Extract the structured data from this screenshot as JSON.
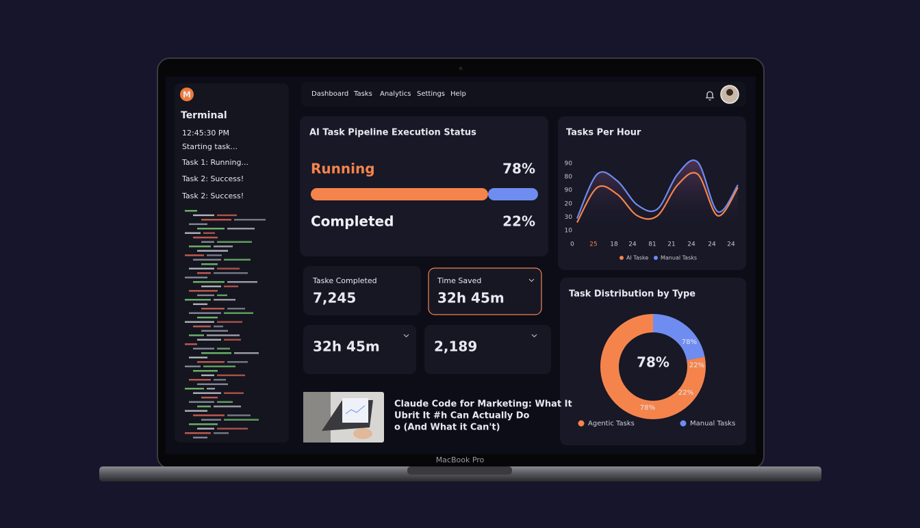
{
  "laptop_label": "MacBook Pro",
  "terminal": {
    "logo": "M",
    "title": "Terminal",
    "lines": [
      "12:45:30 PM",
      "Starting task...",
      "Task 1: Running...",
      "Task 2: Success!",
      "Task 2: Success!"
    ]
  },
  "nav": {
    "items": [
      "Dashboard",
      "Tasks",
      "Analytics",
      "Settings",
      "Help"
    ]
  },
  "pipeline": {
    "title": "AI Task Pipeline Execution Status",
    "rows": [
      {
        "label": "Running",
        "value": 78,
        "value_label": "78%",
        "color": "#f5844c"
      },
      {
        "label": "Completed",
        "value": 22,
        "value_label": "22%",
        "color": "#6f8cf0"
      }
    ]
  },
  "stats": [
    {
      "label": "Taske Completed",
      "value": "7,245"
    },
    {
      "label": "Time Saved",
      "value": "32h 45m"
    },
    {
      "value": "32h 45m"
    },
    {
      "value": "2,189"
    }
  ],
  "article": {
    "title_lines": [
      "Claude Code for Marketing: What It",
      "Ubrit It #h Can Actually Do",
      "o (And What it Can't)"
    ]
  },
  "chart_data": [
    {
      "type": "line",
      "title": "Tasks Per Hour",
      "y_labels": [
        "90",
        "80",
        "90",
        "20",
        "30",
        "10"
      ],
      "ylim": [
        0,
        5
      ],
      "categories": [
        "0",
        "25",
        "18",
        "24",
        "81",
        "21",
        "24",
        "24",
        "24"
      ],
      "series": [
        {
          "name": "Manual Tasks",
          "color": "#6f8cf0",
          "values": [
            0.9,
            4.2,
            3.7,
            1.9,
            1.6,
            4.2,
            5.1,
            1.4,
            3.4
          ]
        },
        {
          "name": "AI Taske",
          "color": "#f5844c",
          "values": [
            0.6,
            3.2,
            2.7,
            1.1,
            1.1,
            3.4,
            4.2,
            1.1,
            3.2
          ]
        }
      ]
    },
    {
      "type": "pie",
      "title": "Task Distribution by Type",
      "categories": [
        "Agentic Tasks",
        "Manual Tasks"
      ],
      "values": [
        78,
        22
      ],
      "value_labels": [
        "78%",
        "22%"
      ],
      "colors": [
        "#f5844c",
        "#6f8cf0"
      ],
      "slice_labels": [
        "78%",
        "22%",
        "22%",
        "78%"
      ]
    }
  ]
}
